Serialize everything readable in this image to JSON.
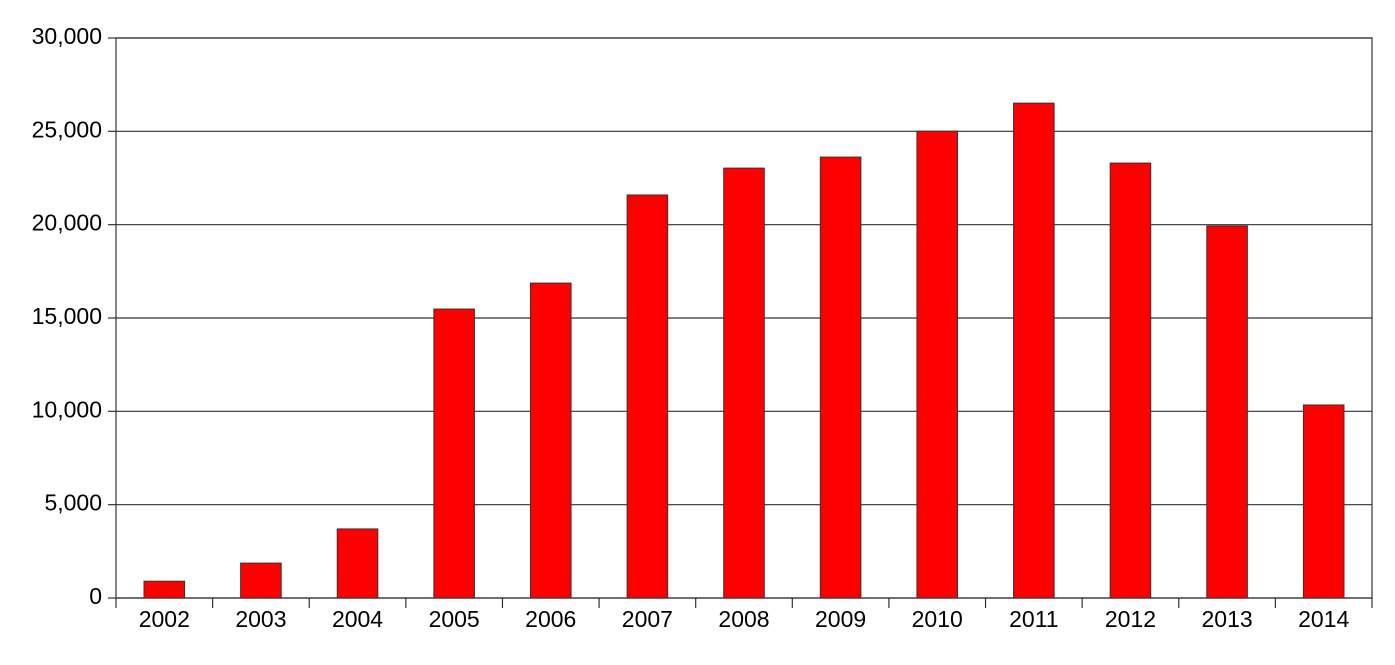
{
  "chart_data": {
    "type": "bar",
    "categories": [
      "2002",
      "2003",
      "2004",
      "2005",
      "2006",
      "2007",
      "2008",
      "2009",
      "2010",
      "2011",
      "2012",
      "2013",
      "2014"
    ],
    "values": [
      900,
      1870,
      3700,
      15480,
      16870,
      21590,
      23030,
      23620,
      25010,
      26510,
      23300,
      19930,
      10340
    ],
    "color": "#ff0000",
    "ylim": [
      0,
      30000
    ],
    "yticks": [
      0,
      {
        "value": 5000,
        "label": "5,000"
      },
      {
        "value": 10000,
        "label": "10,000"
      },
      {
        "value": 15000,
        "label": "15,000"
      },
      {
        "value": 20000,
        "label": "20,000"
      },
      {
        "value": 25000,
        "label": "25,000"
      },
      {
        "value": 30000,
        "label": "30,000"
      }
    ],
    "grid": true
  }
}
